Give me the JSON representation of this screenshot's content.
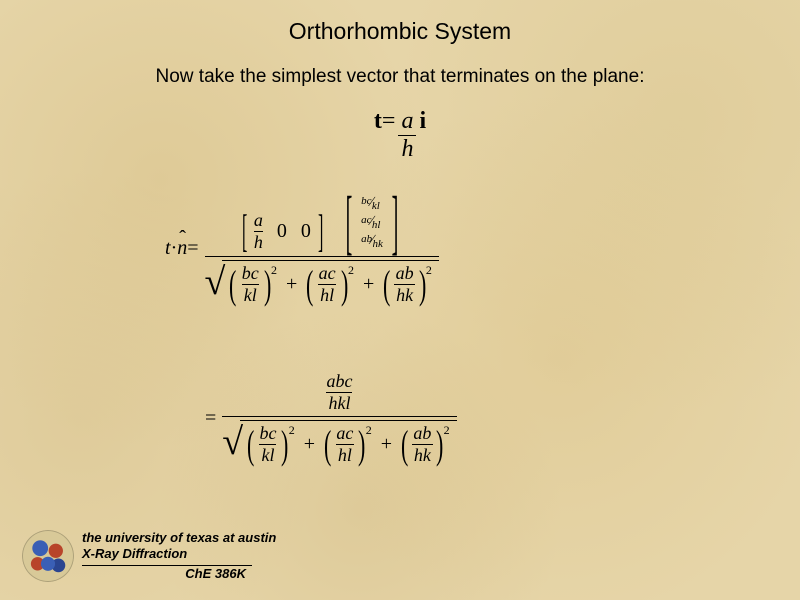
{
  "title": "Orthorhombic System",
  "subtitle": "Now take the simplest vector that terminates on the plane:",
  "eq1": {
    "lhs_t": "t",
    "eq": " = ",
    "num": "a",
    "den": "h",
    "rhs_i": " i"
  },
  "eq2": {
    "t": "t",
    "dot": " · ",
    "n": "n",
    "eq": " = ",
    "rowvec": {
      "c1_num": "a",
      "c1_den": "h",
      "c2": "0",
      "c3": "0"
    },
    "colvec": {
      "r1_n": "bc",
      "r1_d": "kl",
      "r2_n": "ac",
      "r2_d": "hl",
      "r3_n": "ab",
      "r3_d": "hk"
    },
    "root": {
      "t1_num": "bc",
      "t1_den": "kl",
      "t2_num": "ac",
      "t2_den": "hl",
      "t3_num": "ab",
      "t3_den": "hk",
      "plus": "+",
      "sq": "2"
    }
  },
  "eq3": {
    "eq": "= ",
    "top_num": "abc",
    "top_den": "hkl"
  },
  "footer": {
    "uni": "the university of texas at austin",
    "xrd": "X-Ray Diffraction",
    "course": "ChE 386K"
  },
  "style": {
    "bg": "#e6d5a8",
    "title_fontsize": 23,
    "subtitle_fontsize": 19,
    "eq_fontsize_main": 24,
    "eq_fontsize_body": 20,
    "footer_fontsize": 13,
    "text_color": "#000000"
  }
}
